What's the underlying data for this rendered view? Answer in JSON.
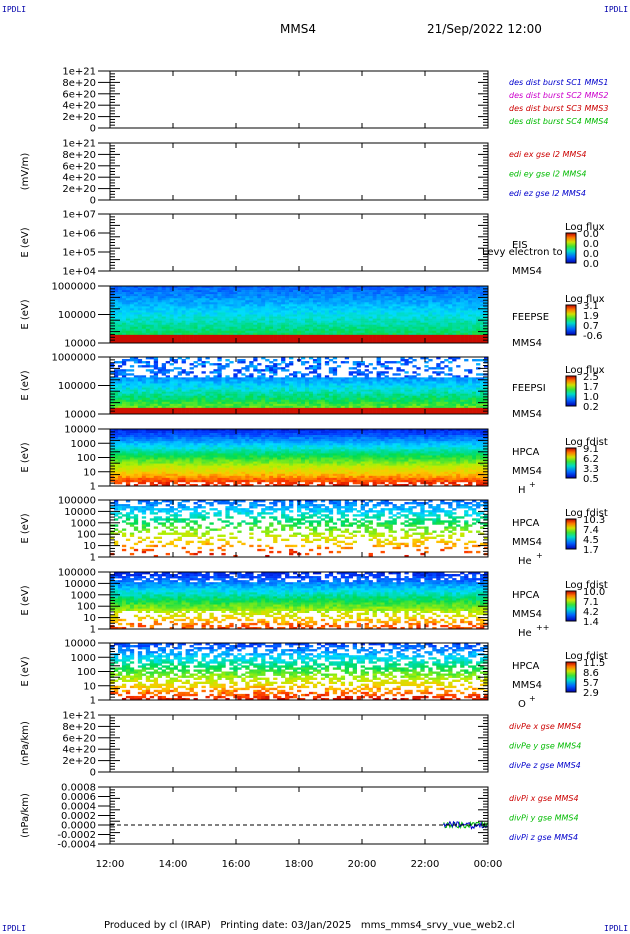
{
  "header": {
    "corner_label": "IPDLI",
    "spacecraft": "MMS4",
    "datetime": "21/Sep/2022 12:00"
  },
  "footer": {
    "text": "Produced by cl (IRAP)   Printing date: 03/Jan/2025   mms_mms4_srvy_vue_web2.cl"
  },
  "chart_data": [
    {
      "type": "line",
      "ylabel": "",
      "ytick_labels": [
        "0",
        "2e+20",
        "4e+20",
        "6e+20",
        "8e+20",
        "1e+21"
      ],
      "ylim": [
        0,
        1e+21
      ],
      "legend": [
        {
          "text": "des dist burst SC1 MMS1",
          "color": "#0000cc"
        },
        {
          "text": "des dist burst SC2 MMS2",
          "color": "#cc00cc"
        },
        {
          "text": "des dist burst SC3 MMS3",
          "color": "#cc0000"
        },
        {
          "text": "des dist burst SC4 MMS4",
          "color": "#00bb00"
        }
      ],
      "zero_line": true
    },
    {
      "type": "line",
      "ylabel": "(mV/m)",
      "ytick_labels": [
        "0",
        "2e+20",
        "4e+20",
        "6e+20",
        "8e+20",
        "1e+21"
      ],
      "ylim": [
        0,
        1e+21
      ],
      "legend": [
        {
          "text": "edi ex gse l2 MMS4",
          "color": "#cc0000"
        },
        {
          "text": "edi ey gse l2 MMS4",
          "color": "#00bb00"
        },
        {
          "text": "edi ez gse l2 MMS4",
          "color": "#0000cc"
        }
      ],
      "zero_line": true
    },
    {
      "type": "heatmap",
      "ylabel": "E (eV)",
      "ytick_labels": [
        "1e+04",
        "1e+05",
        "1e+06",
        "1e+07"
      ],
      "scale": "log",
      "instrument": [
        "EIS",
        "MMS4"
      ],
      "overlay_text": "Levy electron to",
      "colorbar_title": "Log flux",
      "colorbar_ticks": [
        "0.0",
        "0.0",
        "0.0",
        "0.0"
      ]
    },
    {
      "type": "heatmap",
      "ylabel": "E (eV)",
      "ytick_labels": [
        "10000",
        "100000",
        "1000000"
      ],
      "scale": "log",
      "instrument": [
        "FEEPSE",
        "MMS4"
      ],
      "colorbar_title": "Log flux",
      "colorbar_ticks": [
        "3.1",
        "1.9",
        "0.7",
        "-0.6"
      ]
    },
    {
      "type": "heatmap",
      "ylabel": "E (eV)",
      "ytick_labels": [
        "10000",
        "100000",
        "1000000"
      ],
      "scale": "log",
      "instrument": [
        "FEEPSI",
        "MMS4"
      ],
      "colorbar_title": "Log flux",
      "colorbar_ticks": [
        "2.5",
        "1.7",
        "1.0",
        "0.2"
      ]
    },
    {
      "type": "heatmap",
      "ylabel": "E (eV)",
      "ytick_labels": [
        "1",
        "10",
        "100",
        "1000",
        "10000"
      ],
      "scale": "log",
      "instrument": [
        "HPCA",
        "MMS4"
      ],
      "species": "H",
      "species_charge": "+",
      "colorbar_title": "Log fdist",
      "colorbar_ticks": [
        "9.1",
        "6.2",
        "3.3",
        "0.5"
      ]
    },
    {
      "type": "heatmap",
      "ylabel": "E (eV)",
      "ytick_labels": [
        "1",
        "10",
        "100",
        "1000",
        "10000",
        "100000"
      ],
      "scale": "log",
      "instrument": [
        "HPCA",
        "MMS4"
      ],
      "species": "He",
      "species_charge": "+",
      "colorbar_title": "Log fdist",
      "colorbar_ticks": [
        "10.3",
        "7.4",
        "4.5",
        "1.7"
      ]
    },
    {
      "type": "heatmap",
      "ylabel": "E (eV)",
      "ytick_labels": [
        "1",
        "10",
        "100",
        "1000",
        "10000",
        "100000"
      ],
      "scale": "log",
      "instrument": [
        "HPCA",
        "MMS4"
      ],
      "species": "He",
      "species_charge": "++",
      "colorbar_title": "Log fdist",
      "colorbar_ticks": [
        "10.0",
        "7.1",
        "4.2",
        "1.4"
      ]
    },
    {
      "type": "heatmap",
      "ylabel": "E (eV)",
      "ytick_labels": [
        "1",
        "10",
        "100",
        "1000",
        "10000"
      ],
      "scale": "log",
      "instrument": [
        "HPCA",
        "MMS4"
      ],
      "species": "O",
      "species_charge": "+",
      "colorbar_title": "Log fdist",
      "colorbar_ticks": [
        "11.5",
        "8.6",
        "5.7",
        "2.9"
      ]
    },
    {
      "type": "line",
      "ylabel": "(nPa/km)",
      "ytick_labels": [
        "0",
        "2e+20",
        "4e+20",
        "6e+20",
        "8e+20",
        "1e+21"
      ],
      "ylim": [
        0,
        1e+21
      ],
      "legend": [
        {
          "text": "divPe x gse MMS4",
          "color": "#cc0000"
        },
        {
          "text": "divPe y gse MMS4",
          "color": "#00bb00"
        },
        {
          "text": "divPe z gse MMS4",
          "color": "#0000cc"
        }
      ],
      "zero_line": true
    },
    {
      "type": "line",
      "ylabel": "(nPa/km)",
      "ytick_labels": [
        "-0.0004",
        "-0.0002",
        "0.0000",
        "0.0002",
        "0.0004",
        "0.0006",
        "0.0008"
      ],
      "ylim": [
        -0.0004,
        0.0008
      ],
      "legend": [
        {
          "text": "divPi x gse MMS4",
          "color": "#cc0000"
        },
        {
          "text": "divPi y gse MMS4",
          "color": "#00bb00"
        },
        {
          "text": "divPi z gse MMS4",
          "color": "#0000cc"
        }
      ],
      "zero_line": true,
      "signal_start_hours": 22.6
    }
  ],
  "x_axis": {
    "tick_labels": [
      "12:00",
      "14:00",
      "16:00",
      "18:00",
      "20:00",
      "22:00",
      "00:00"
    ],
    "range_hours": [
      12,
      24
    ]
  }
}
